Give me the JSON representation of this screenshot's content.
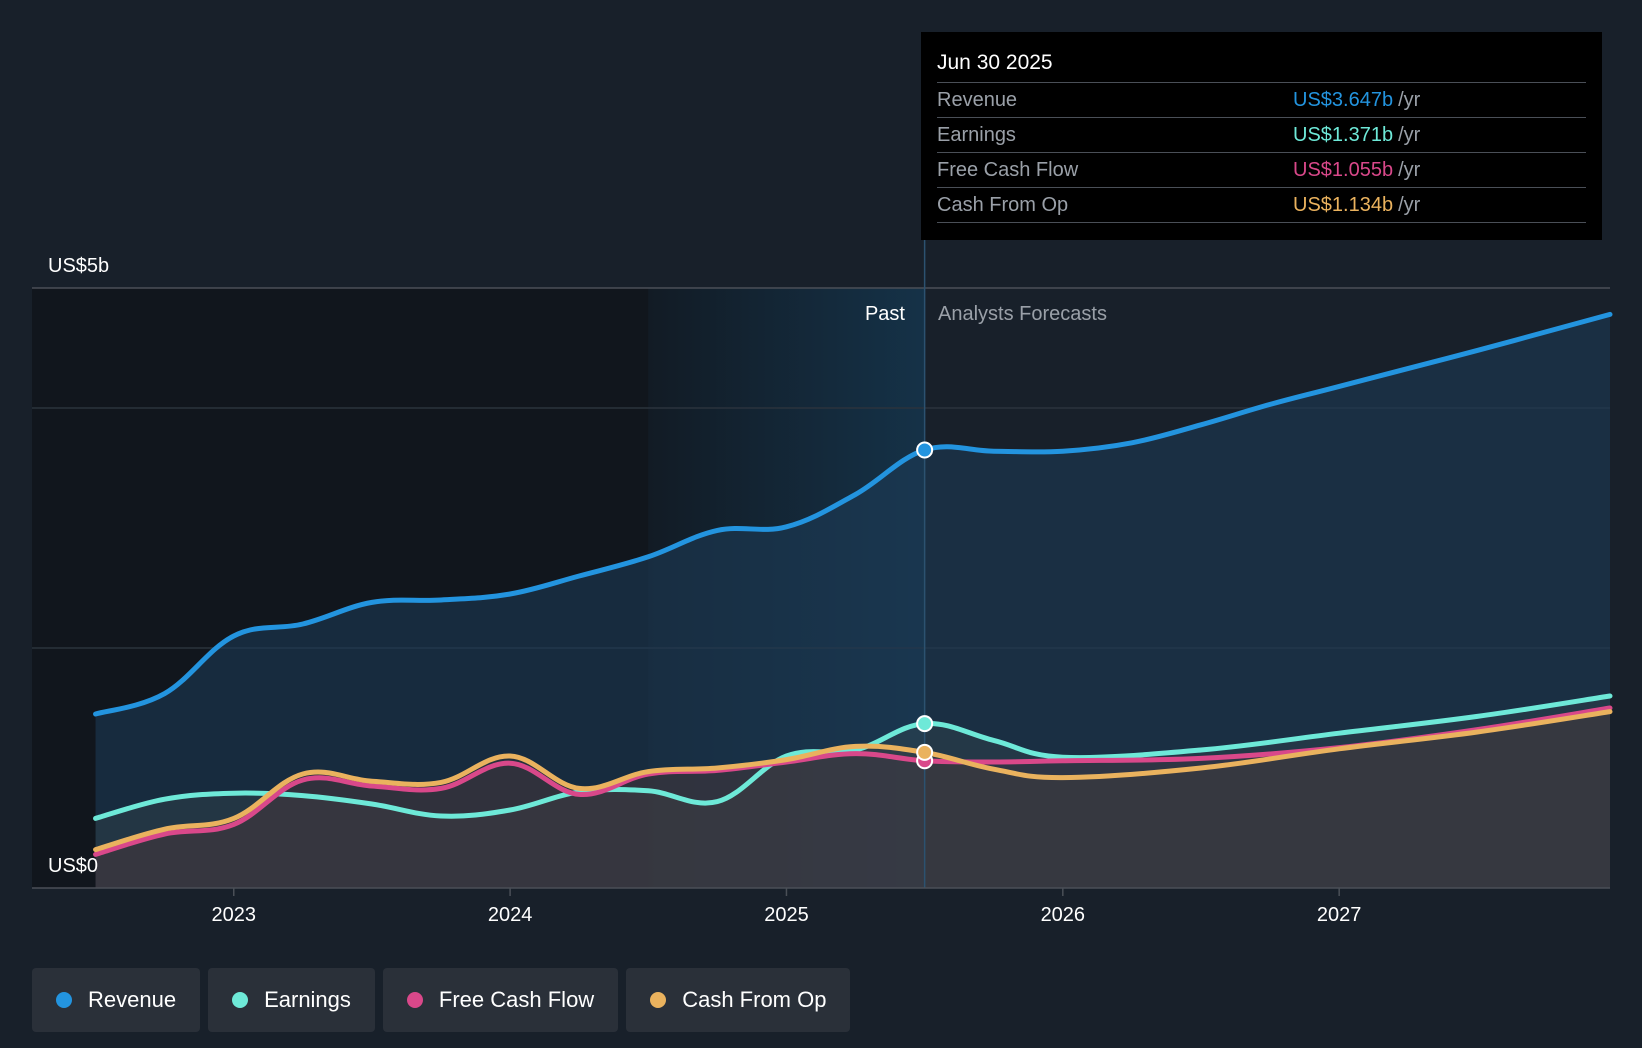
{
  "colors": {
    "background": "#18202a",
    "revenue": "#2394df",
    "earnings": "#6ee9d8",
    "free_cash_flow": "#d9488a",
    "cash_from_op": "#eab25e"
  },
  "tooltip": {
    "date": "Jun 30 2025",
    "unit": "/yr",
    "rows": [
      {
        "label": "Revenue",
        "value": "US$3.647b"
      },
      {
        "label": "Earnings",
        "value": "US$1.371b"
      },
      {
        "label": "Free Cash Flow",
        "value": "US$1.055b"
      },
      {
        "label": "Cash From Op",
        "value": "US$1.134b"
      }
    ]
  },
  "legend": {
    "items": [
      {
        "label": "Revenue",
        "icon": "revenue-dot-icon"
      },
      {
        "label": "Earnings",
        "icon": "earnings-dot-icon"
      },
      {
        "label": "Free Cash Flow",
        "icon": "free-cash-flow-dot-icon"
      },
      {
        "label": "Cash From Op",
        "icon": "cash-from-op-dot-icon"
      }
    ]
  },
  "chart_data": {
    "type": "line",
    "title": "",
    "y_label_top": "US$5b",
    "y_label_bottom": "US$0",
    "past_label": "Past",
    "forecast_label": "Analysts Forecasts",
    "x_ticks": [
      "2023",
      "2024",
      "2025",
      "2026",
      "2027"
    ],
    "x_tick_values": [
      2023.0,
      2024.0,
      2025.0,
      2026.0,
      2027.0
    ],
    "xlim": [
      2022.27,
      2027.98
    ],
    "ylim": [
      0,
      5
    ],
    "divider_x": 2025.5,
    "highlight_start_x": 2024.5,
    "gridlines_y": [
      2,
      4,
      5
    ],
    "series": [
      {
        "name": "Revenue",
        "color": "#2394df",
        "points": [
          [
            2022.5,
            1.45
          ],
          [
            2022.75,
            1.62
          ],
          [
            2023.0,
            2.1
          ],
          [
            2023.25,
            2.2
          ],
          [
            2023.5,
            2.38
          ],
          [
            2023.75,
            2.4
          ],
          [
            2024.0,
            2.45
          ],
          [
            2024.25,
            2.6
          ],
          [
            2024.5,
            2.76
          ],
          [
            2024.75,
            2.98
          ],
          [
            2025.0,
            3.01
          ],
          [
            2025.25,
            3.28
          ],
          [
            2025.5,
            3.65
          ],
          [
            2025.75,
            3.64
          ],
          [
            2026.0,
            3.64
          ],
          [
            2026.25,
            3.71
          ],
          [
            2026.5,
            3.86
          ],
          [
            2026.75,
            4.03
          ],
          [
            2027.0,
            4.18
          ],
          [
            2027.5,
            4.48
          ],
          [
            2027.98,
            4.78
          ]
        ]
      },
      {
        "name": "Earnings",
        "color": "#6ee9d8",
        "points": [
          [
            2022.5,
            0.58
          ],
          [
            2022.75,
            0.74
          ],
          [
            2023.0,
            0.79
          ],
          [
            2023.25,
            0.77
          ],
          [
            2023.5,
            0.7
          ],
          [
            2023.75,
            0.6
          ],
          [
            2024.0,
            0.65
          ],
          [
            2024.25,
            0.8
          ],
          [
            2024.5,
            0.81
          ],
          [
            2024.75,
            0.72
          ],
          [
            2025.0,
            1.1
          ],
          [
            2025.25,
            1.15
          ],
          [
            2025.5,
            1.37
          ],
          [
            2025.75,
            1.23
          ],
          [
            2026.0,
            1.09
          ],
          [
            2026.5,
            1.15
          ],
          [
            2027.0,
            1.29
          ],
          [
            2027.5,
            1.43
          ],
          [
            2027.98,
            1.6
          ]
        ]
      },
      {
        "name": "Free Cash Flow",
        "color": "#d9488a",
        "points": [
          [
            2022.5,
            0.28
          ],
          [
            2022.75,
            0.45
          ],
          [
            2023.0,
            0.53
          ],
          [
            2023.25,
            0.9
          ],
          [
            2023.5,
            0.85
          ],
          [
            2023.75,
            0.83
          ],
          [
            2024.0,
            1.04
          ],
          [
            2024.25,
            0.78
          ],
          [
            2024.5,
            0.95
          ],
          [
            2024.75,
            0.98
          ],
          [
            2025.0,
            1.05
          ],
          [
            2025.25,
            1.12
          ],
          [
            2025.5,
            1.06
          ],
          [
            2025.75,
            1.05
          ],
          [
            2026.0,
            1.06
          ],
          [
            2026.5,
            1.08
          ],
          [
            2027.0,
            1.17
          ],
          [
            2027.5,
            1.32
          ],
          [
            2027.98,
            1.5
          ]
        ]
      },
      {
        "name": "Cash From Op",
        "color": "#eab25e",
        "points": [
          [
            2022.5,
            0.32
          ],
          [
            2022.75,
            0.49
          ],
          [
            2023.0,
            0.58
          ],
          [
            2023.25,
            0.95
          ],
          [
            2023.5,
            0.89
          ],
          [
            2023.75,
            0.88
          ],
          [
            2024.0,
            1.1
          ],
          [
            2024.25,
            0.83
          ],
          [
            2024.5,
            0.97
          ],
          [
            2024.75,
            1.0
          ],
          [
            2025.0,
            1.07
          ],
          [
            2025.25,
            1.18
          ],
          [
            2025.5,
            1.13
          ],
          [
            2025.75,
            0.99
          ],
          [
            2026.0,
            0.92
          ],
          [
            2026.5,
            1.0
          ],
          [
            2027.0,
            1.16
          ],
          [
            2027.5,
            1.3
          ],
          [
            2027.98,
            1.47
          ]
        ]
      }
    ]
  }
}
